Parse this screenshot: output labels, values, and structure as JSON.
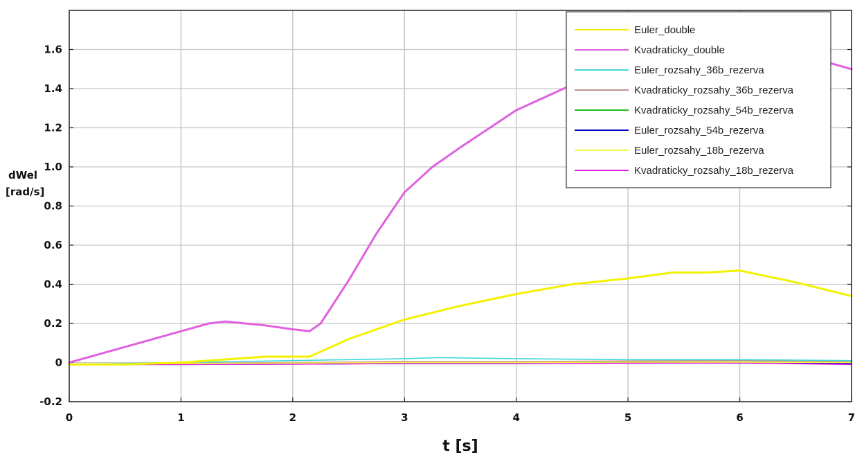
{
  "chart_data": {
    "type": "line",
    "title": "",
    "xlabel": "t [s]",
    "ylabel_line1": "dWel",
    "ylabel_line2": "[rad/s]",
    "xlim": [
      0,
      7
    ],
    "ylim": [
      -0.2,
      1.8
    ],
    "grid": true,
    "legend_position": "top-right",
    "x_ticks": [
      {
        "v": 0,
        "label": "0"
      },
      {
        "v": 1,
        "label": "1"
      },
      {
        "v": 2,
        "label": "2"
      },
      {
        "v": 3,
        "label": "3"
      },
      {
        "v": 4,
        "label": "4"
      },
      {
        "v": 5,
        "label": "5"
      },
      {
        "v": 6,
        "label": "6"
      },
      {
        "v": 7,
        "label": "7"
      }
    ],
    "y_ticks": [
      {
        "v": -0.2,
        "label": "-0.2"
      },
      {
        "v": 0,
        "label": "0"
      },
      {
        "v": 0.2,
        "label": "0.2"
      },
      {
        "v": 0.4,
        "label": "0.4"
      },
      {
        "v": 0.6,
        "label": "0.6"
      },
      {
        "v": 0.8,
        "label": "0.8"
      },
      {
        "v": 1.0,
        "label": "1.0"
      },
      {
        "v": 1.2,
        "label": "1.2"
      },
      {
        "v": 1.4,
        "label": "1.4"
      },
      {
        "v": 1.6,
        "label": "1.6"
      }
    ],
    "series": [
      {
        "name": "Euler_double",
        "color": "#f2f200",
        "x": [
          0,
          0.5,
          1.0,
          1.5,
          1.75,
          2.0,
          2.15,
          2.5,
          3.0,
          3.5,
          4.0,
          4.5,
          5.0,
          5.4,
          5.7,
          6.0,
          6.5,
          7.0
        ],
        "y": [
          -0.01,
          -0.01,
          0.0,
          0.02,
          0.03,
          0.03,
          0.03,
          0.12,
          0.22,
          0.29,
          0.35,
          0.4,
          0.43,
          0.46,
          0.46,
          0.47,
          0.41,
          0.34
        ]
      },
      {
        "name": "Kvadraticky_double",
        "color": "#e060e0",
        "x": [
          0,
          0.5,
          1.0,
          1.25,
          1.4,
          1.75,
          2.0,
          2.15,
          2.25,
          2.5,
          2.75,
          3.0,
          3.25,
          3.5,
          4.0,
          4.5,
          5.0,
          5.5,
          6.0,
          6.5,
          7.0
        ],
        "y": [
          0.0,
          0.08,
          0.16,
          0.2,
          0.21,
          0.19,
          0.17,
          0.16,
          0.2,
          0.42,
          0.66,
          0.87,
          1.0,
          1.1,
          1.29,
          1.42,
          1.53,
          1.6,
          1.6,
          1.58,
          1.5
        ]
      },
      {
        "name": "Euler_rozsahy_36b_rezerva",
        "color": "#40d8d8",
        "x": [
          0,
          1,
          2,
          3,
          3.3,
          4,
          5,
          6,
          7
        ],
        "y": [
          -0.01,
          0.0,
          0.01,
          0.02,
          0.025,
          0.02,
          0.015,
          0.015,
          0.01
        ]
      },
      {
        "name": "Kvadraticky_rozsahy_36b_rezerva",
        "color": "#c09090",
        "x": [
          0,
          1,
          2,
          3,
          4,
          5,
          6,
          7
        ],
        "y": [
          -0.01,
          -0.005,
          0.0,
          0.005,
          0.005,
          0.008,
          0.01,
          0.005
        ]
      },
      {
        "name": "Kvadraticky_rozsahy_54b_rezerva",
        "color": "#20c020",
        "x": [
          0,
          1,
          2,
          3,
          4,
          5,
          6,
          7
        ],
        "y": [
          -0.01,
          -0.008,
          -0.005,
          0.0,
          0.0,
          0.003,
          0.003,
          0.0
        ]
      },
      {
        "name": "Euler_rozsahy_54b_rezerva",
        "color": "#0000c0",
        "x": [
          0,
          1,
          2,
          3,
          4,
          5,
          6,
          7
        ],
        "y": [
          -0.01,
          -0.01,
          -0.008,
          -0.005,
          -0.005,
          -0.003,
          -0.003,
          -0.005
        ]
      },
      {
        "name": "Euler_rozsahy_18b_rezerva",
        "color": "#f8f840",
        "x": [
          0,
          1,
          2,
          3,
          4,
          5,
          6,
          7
        ],
        "y": [
          -0.01,
          -0.005,
          -0.003,
          0.0,
          0.0,
          0.002,
          0.002,
          0.0
        ]
      },
      {
        "name": "Kvadraticky_rozsahy_18b_rezerva",
        "color": "#e020e0",
        "x": [
          0,
          1,
          2,
          3,
          4,
          5,
          6,
          7
        ],
        "y": [
          -0.01,
          -0.01,
          -0.008,
          -0.005,
          -0.005,
          -0.004,
          -0.002,
          -0.01
        ]
      }
    ]
  }
}
